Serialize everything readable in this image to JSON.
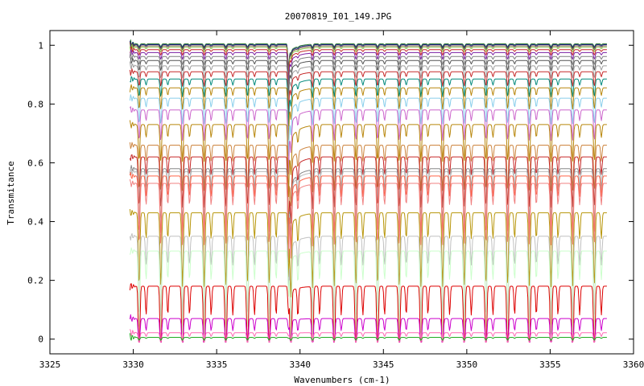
{
  "chart_data": {
    "type": "line",
    "title": "20070819_I01_149.JPG",
    "xlabel": "Wavenumbers (cm-1)",
    "ylabel": "Transmitance",
    "xlim": [
      3325,
      3360
    ],
    "ylim": [
      -0.05,
      1.05
    ],
    "grid": false,
    "legend": "none",
    "x_ticks": [
      3325,
      3330,
      3335,
      3340,
      3345,
      3350,
      3355,
      3360
    ],
    "x_tick_labels": [
      "3325",
      "3330",
      "3335",
      "3340",
      "3345",
      "3350",
      "3355",
      "3360"
    ],
    "y_ticks": [
      0,
      0.2,
      0.4,
      0.6,
      0.8,
      1
    ],
    "y_tick_labels": [
      "0",
      "0.2",
      "0.4",
      "0.6",
      "0.8",
      "1"
    ],
    "x_range_of_data": [
      3329.8,
      3358.4
    ],
    "strong_absorption_line_x": 3339.3,
    "absorption_line_spacing": 1.3,
    "series": [
      {
        "baseline": 1.005,
        "color": "#2e7d32"
      },
      {
        "baseline": 1.002,
        "color": "#1a237e"
      },
      {
        "baseline": 0.998,
        "color": "#6d4c41"
      },
      {
        "baseline": 0.993,
        "color": "#8bc34a"
      },
      {
        "baseline": 0.985,
        "color": "#c62828"
      },
      {
        "baseline": 0.975,
        "color": "#7b1fa2"
      },
      {
        "baseline": 0.962,
        "color": "#808080"
      },
      {
        "baseline": 0.948,
        "color": "#555555"
      },
      {
        "baseline": 0.93,
        "color": "#9e9e9e"
      },
      {
        "baseline": 0.91,
        "color": "#c62828"
      },
      {
        "baseline": 0.885,
        "color": "#00897b"
      },
      {
        "baseline": 0.855,
        "color": "#b8860b"
      },
      {
        "baseline": 0.82,
        "color": "#87ceeb"
      },
      {
        "baseline": 0.78,
        "color": "#cc66cc"
      },
      {
        "baseline": 0.73,
        "color": "#b8860b"
      },
      {
        "baseline": 0.66,
        "color": "#cd853f"
      },
      {
        "baseline": 0.62,
        "color": "#c62828"
      },
      {
        "baseline": 0.58,
        "color": "#888888"
      },
      {
        "baseline": 0.57,
        "color": "#bbbbbb"
      },
      {
        "baseline": 0.555,
        "color": "#ff6347"
      },
      {
        "baseline": 0.53,
        "color": "#f08080"
      },
      {
        "baseline": 0.43,
        "color": "#b8960b"
      },
      {
        "baseline": 0.35,
        "color": "#c0c0c0"
      },
      {
        "baseline": 0.3,
        "color": "#ccffcc"
      },
      {
        "baseline": 0.18,
        "color": "#dd0000"
      },
      {
        "baseline": 0.07,
        "color": "#cc00cc"
      },
      {
        "baseline": 0.022,
        "color": "#ff69b4"
      },
      {
        "baseline": 0.006,
        "color": "#22aa22"
      }
    ]
  }
}
